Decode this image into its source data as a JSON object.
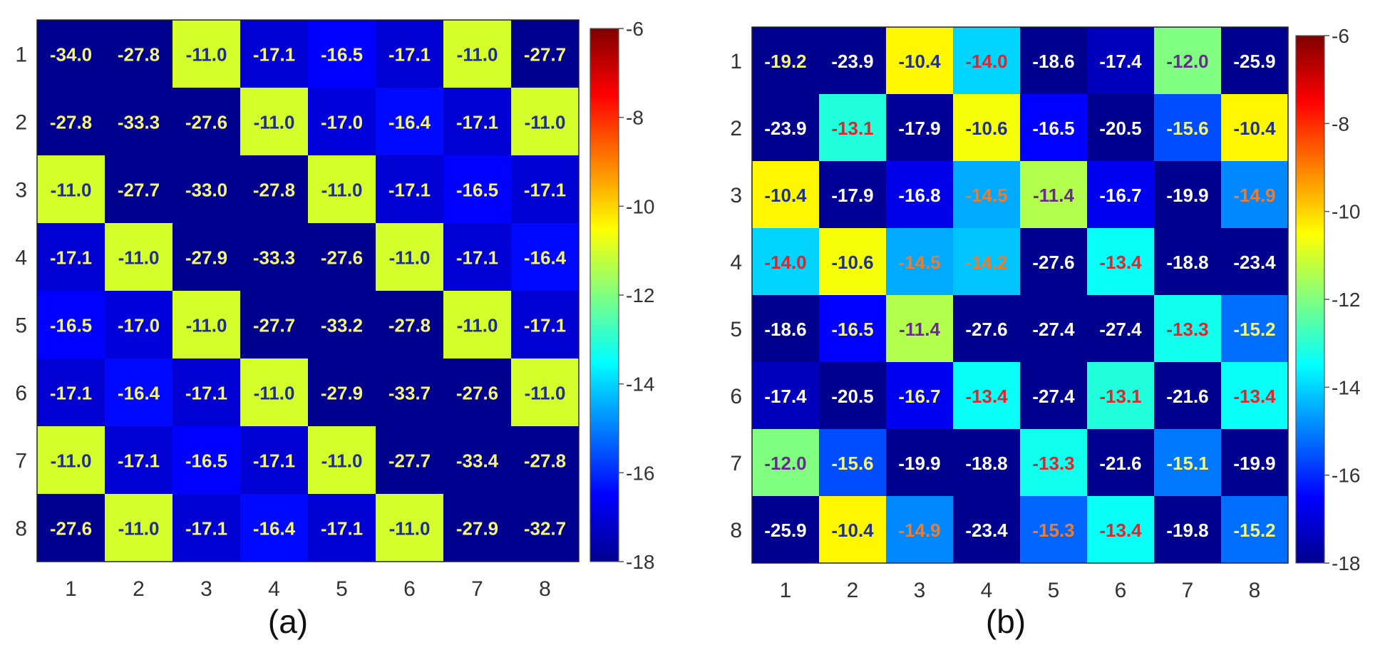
{
  "chart_data": [
    {
      "type": "heatmap",
      "panel_label": "(a)",
      "x_categories": [
        "1",
        "2",
        "3",
        "4",
        "5",
        "6",
        "7",
        "8"
      ],
      "y_categories": [
        "1",
        "2",
        "3",
        "4",
        "5",
        "6",
        "7",
        "8"
      ],
      "values": [
        [
          -34.0,
          -27.8,
          -11.0,
          -17.1,
          -16.5,
          -17.1,
          -11.0,
          -27.7
        ],
        [
          -27.8,
          -33.3,
          -27.6,
          -11.0,
          -17.0,
          -16.4,
          -17.1,
          -11.0
        ],
        [
          -11.0,
          -27.7,
          -33.0,
          -27.8,
          -11.0,
          -17.1,
          -16.5,
          -17.1
        ],
        [
          -17.1,
          -11.0,
          -27.9,
          -33.3,
          -27.6,
          -11.0,
          -17.1,
          -16.4
        ],
        [
          -16.5,
          -17.0,
          -11.0,
          -27.7,
          -33.2,
          -27.8,
          -11.0,
          -17.1
        ],
        [
          -17.1,
          -16.4,
          -17.1,
          -11.0,
          -27.9,
          -33.7,
          -27.6,
          -11.0
        ],
        [
          -11.0,
          -17.1,
          -16.5,
          -17.1,
          -11.0,
          -27.7,
          -33.4,
          -27.8
        ],
        [
          -27.6,
          -11.0,
          -17.1,
          -16.4,
          -17.1,
          -11.0,
          -27.9,
          -32.7
        ]
      ],
      "colorbar": {
        "min": -18,
        "max": -6,
        "ticks": [
          -6,
          -8,
          -10,
          -12,
          -14,
          -16,
          -18
        ],
        "colormap": "jet"
      },
      "grid": false
    },
    {
      "type": "heatmap",
      "panel_label": "(b)",
      "x_categories": [
        "1",
        "2",
        "3",
        "4",
        "5",
        "6",
        "7",
        "8"
      ],
      "y_categories": [
        "1",
        "2",
        "3",
        "4",
        "5",
        "6",
        "7",
        "8"
      ],
      "values": [
        [
          -19.2,
          -23.9,
          -10.4,
          -14.0,
          -18.6,
          -17.4,
          -12.0,
          -25.9
        ],
        [
          -23.9,
          -13.1,
          -17.9,
          -10.6,
          -16.5,
          -20.5,
          -15.6,
          -10.4
        ],
        [
          -10.4,
          -17.9,
          -16.8,
          -14.5,
          -11.4,
          -16.7,
          -19.9,
          -14.9
        ],
        [
          -14.0,
          -10.6,
          -14.5,
          -14.2,
          -27.6,
          -13.4,
          -18.8,
          -23.4
        ],
        [
          -18.6,
          -16.5,
          -11.4,
          -27.6,
          -27.4,
          -27.4,
          -13.3,
          -15.2
        ],
        [
          -17.4,
          -20.5,
          -16.7,
          -13.4,
          -27.4,
          -13.1,
          -21.6,
          -13.4
        ],
        [
          -12.0,
          -15.6,
          -19.9,
          -18.8,
          -13.3,
          -21.6,
          -15.1,
          -19.9
        ],
        [
          -25.9,
          -10.4,
          -14.9,
          -23.4,
          -15.3,
          -13.4,
          -19.8,
          -15.2
        ]
      ],
      "label_colors": [
        [
          "yellow",
          "white",
          "navy",
          "red",
          "white",
          "white",
          "purple",
          "white"
        ],
        [
          "white",
          "red",
          "white",
          "navy",
          "white",
          "white",
          "yellow",
          "navy"
        ],
        [
          "navy",
          "white",
          "white",
          "orange",
          "purple",
          "white",
          "white",
          "orange"
        ],
        [
          "red",
          "navy",
          "orange",
          "orange",
          "white",
          "red",
          "white",
          "white"
        ],
        [
          "white",
          "yellow",
          "purple",
          "white",
          "white",
          "white",
          "red",
          "yellow"
        ],
        [
          "white",
          "white",
          "yellow",
          "red",
          "white",
          "red",
          "white",
          "red"
        ],
        [
          "purple",
          "yellow",
          "white",
          "white",
          "red",
          "white",
          "yellow",
          "white"
        ],
        [
          "white",
          "navy",
          "orange",
          "white",
          "orange",
          "red",
          "white",
          "yellow"
        ]
      ],
      "colorbar": {
        "min": -18,
        "max": -6,
        "ticks": [
          -6,
          -8,
          -10,
          -12,
          -14,
          -16,
          -18
        ],
        "colormap": "jet"
      },
      "grid": false
    }
  ],
  "colors": {
    "white": "#ffffff",
    "yellow": "#f5f57a",
    "red": "#e3242b",
    "orange": "#f07c2a",
    "purple": "#6a2c91",
    "navy": "#1f2f8c"
  }
}
